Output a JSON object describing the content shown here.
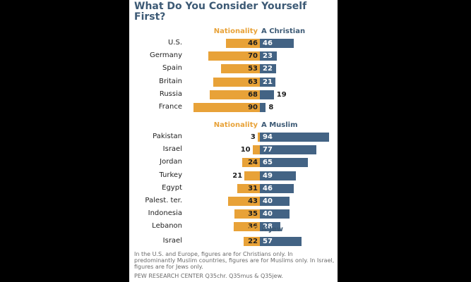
{
  "chart_data": {
    "type": "bar",
    "title": "What Do You Consider Yourself First?",
    "orientation": "horizontal-diverging",
    "groups": [
      {
        "header_left": "Nationality",
        "header_right": "A Christian",
        "categories": [
          "U.S.",
          "Germany",
          "Spain",
          "Britain",
          "Russia",
          "France"
        ],
        "series": [
          {
            "name": "Nationality",
            "values": [
              46,
              70,
              53,
              63,
              68,
              90
            ]
          },
          {
            "name": "A Christian",
            "values": [
              46,
              23,
              22,
              21,
              19,
              8
            ]
          }
        ]
      },
      {
        "header_left": "Nationality",
        "header_right": "A Muslim",
        "categories": [
          "Pakistan",
          "Israel",
          "Jordan",
          "Turkey",
          "Egypt",
          "Palest. ter.",
          "Indonesia",
          "Lebanon"
        ],
        "series": [
          {
            "name": "Nationality",
            "values": [
              3,
              10,
              24,
              21,
              31,
              43,
              35,
              36
            ]
          },
          {
            "name": "A Muslim",
            "values": [
              94,
              77,
              65,
              49,
              46,
              40,
              40,
              28
            ]
          }
        ]
      },
      {
        "header_left": "Israeli",
        "header_right": "A Jew",
        "categories": [
          "Israel"
        ],
        "series": [
          {
            "name": "Israeli",
            "values": [
              22
            ]
          },
          {
            "name": "A Jew",
            "values": [
              57
            ]
          }
        ]
      }
    ],
    "colors": {
      "left": "#e8a238",
      "right": "#436384"
    },
    "note": "In the U.S. and Europe, figures are for Christians only.  In predominantly Muslim countries, figures are for Muslims only.  In Israel, figures are for Jews only.",
    "source": "PEW RESEARCH  CENTER Q35chr. Q35mus & Q35jew."
  }
}
